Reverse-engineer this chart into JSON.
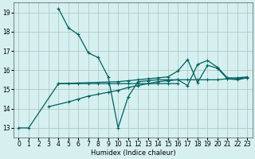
{
  "title": "",
  "xlabel": "Humidex (Indice chaleur)",
  "background_color": "#d6f0f0",
  "grid_color": "#b0c8c8",
  "line_color": "#006060",
  "xlim": [
    -0.5,
    23.5
  ],
  "ylim": [
    12.5,
    19.5
  ],
  "xticks": [
    0,
    1,
    2,
    3,
    4,
    5,
    6,
    7,
    8,
    9,
    10,
    11,
    12,
    13,
    14,
    15,
    16,
    17,
    18,
    19,
    20,
    21,
    22,
    23
  ],
  "yticks": [
    13,
    14,
    15,
    16,
    17,
    18,
    19
  ],
  "series": [
    {
      "x": [
        0,
        1,
        4,
        5,
        6,
        7,
        8,
        9,
        10,
        11,
        12,
        13,
        14,
        15,
        16
      ],
      "y": [
        13.0,
        13.0,
        15.3,
        15.3,
        15.3,
        15.3,
        15.3,
        15.3,
        15.3,
        15.3,
        15.3,
        15.3,
        15.3,
        15.3,
        15.3
      ]
    },
    {
      "comment": "rising line from x=3,14.1 to x=23,15.6",
      "x": [
        3,
        5,
        6,
        7,
        8,
        9,
        10,
        11,
        12,
        13,
        14,
        15,
        16,
        17,
        18,
        19,
        20,
        21,
        22,
        23
      ],
      "y": [
        14.1,
        14.35,
        14.5,
        14.65,
        14.75,
        14.85,
        14.95,
        15.1,
        15.2,
        15.3,
        15.4,
        15.45,
        15.5,
        15.5,
        15.5,
        15.5,
        15.5,
        15.55,
        15.55,
        15.6
      ]
    },
    {
      "x": [
        4,
        5,
        6,
        7,
        8,
        9,
        10,
        11,
        12,
        13,
        14,
        15,
        16,
        17,
        18,
        19,
        20,
        21,
        22,
        23
      ],
      "y": [
        19.2,
        18.2,
        17.85,
        16.9,
        16.65,
        15.65,
        13.0,
        14.6,
        15.4,
        15.45,
        15.5,
        15.5,
        15.5,
        15.2,
        16.3,
        16.5,
        16.15,
        15.6,
        15.6,
        15.65
      ]
    },
    {
      "x": [
        4,
        10,
        11,
        12,
        13,
        14,
        15,
        16,
        17,
        18,
        19,
        20,
        21,
        22,
        23
      ],
      "y": [
        15.3,
        15.4,
        15.45,
        15.5,
        15.55,
        15.6,
        15.65,
        15.95,
        16.55,
        15.35,
        16.25,
        16.1,
        15.55,
        15.5,
        15.6
      ]
    }
  ]
}
